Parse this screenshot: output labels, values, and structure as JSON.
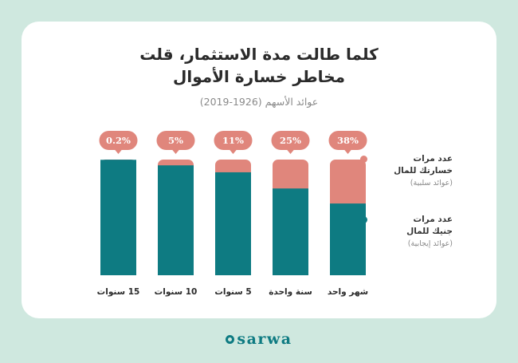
{
  "title_line1": "كلما طالت مدة الاستثمار، قلت",
  "title_line2": "مخاطر خسارة الأموال",
  "subtitle": "عوائد الأسهم (1926-2019)",
  "legend": {
    "loss": {
      "line1": "عدد مرات",
      "line2": "خسارتك للمال",
      "note": "(عوائد سلبية)",
      "color": "#e0867c"
    },
    "gain": {
      "line1": "عدد مرات",
      "line2": "جنيك للمال",
      "note": "(عوائد إيجابية)",
      "color": "#0e7b82"
    }
  },
  "brand": "sarwa",
  "chart_data": {
    "type": "bar",
    "stacked": true,
    "categories": [
      "شهر واحد",
      "سنة واحدة",
      "5 سنوات",
      "10 سنوات",
      "15 سنوات"
    ],
    "series": [
      {
        "name": "عدد مرات خسارتك للمال",
        "values": [
          38,
          25,
          11,
          5,
          0.2
        ],
        "color": "#e0867c"
      },
      {
        "name": "عدد مرات جنيك للمال",
        "values": [
          62,
          75,
          89,
          95,
          99.8
        ],
        "color": "#0e7b82"
      }
    ],
    "data_labels": [
      "38%",
      "25%",
      "11%",
      "5%",
      "0.2%"
    ],
    "ylim": [
      0,
      100
    ]
  }
}
